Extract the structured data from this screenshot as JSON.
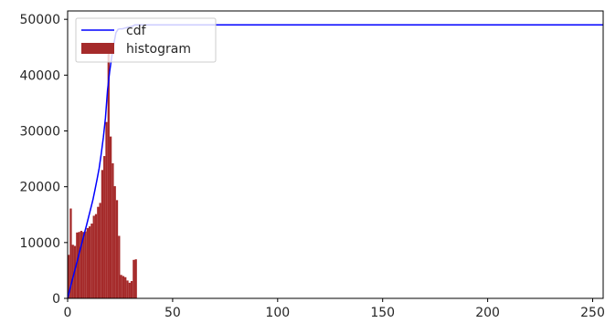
{
  "chart_data": {
    "type": "bar",
    "title": "",
    "xlabel": "",
    "ylabel": "",
    "xlim": [
      0,
      255
    ],
    "ylim": [
      0,
      51500
    ],
    "x_ticks": [
      0,
      50,
      100,
      150,
      200,
      250
    ],
    "y_ticks": [
      0,
      10000,
      20000,
      30000,
      40000,
      50000
    ],
    "grid": false,
    "legend": {
      "placement": "upper-left",
      "entries": [
        {
          "label": "cdf",
          "kind": "line",
          "color": "#0000ff"
        },
        {
          "label": "histogram",
          "kind": "bar",
          "color": "#a52a2a"
        }
      ]
    },
    "series": [
      {
        "name": "histogram",
        "kind": "bar",
        "color": "#a52a2a",
        "bin_width": 1,
        "x": [
          0,
          1,
          2,
          3,
          4,
          5,
          6,
          7,
          8,
          9,
          10,
          11,
          12,
          13,
          14,
          15,
          16,
          17,
          18,
          19,
          20,
          21,
          22,
          23,
          24,
          25,
          26,
          27,
          28,
          29,
          30,
          31,
          32,
          33
        ],
        "values": [
          7800,
          16100,
          9600,
          9400,
          11800,
          11900,
          12100,
          11900,
          12000,
          12600,
          12900,
          13400,
          14800,
          15100,
          16400,
          17100,
          23000,
          25500,
          31600,
          44200,
          29000,
          24200,
          20100,
          17600,
          11200,
          4200,
          4000,
          3800,
          3200,
          2800,
          3100,
          6900,
          7000,
          0
        ]
      },
      {
        "name": "cdf",
        "kind": "line",
        "color": "#0000ff",
        "x": [
          0,
          1,
          2,
          3,
          4,
          5,
          6,
          7,
          8,
          9,
          10,
          11,
          12,
          13,
          14,
          15,
          16,
          17,
          18,
          19,
          20,
          21,
          22,
          23,
          24,
          25,
          26,
          27,
          28,
          29,
          30,
          31,
          32,
          33,
          255
        ],
        "values": [
          0,
          1500,
          3000,
          4400,
          5900,
          7300,
          8800,
          10200,
          11700,
          13100,
          14600,
          16100,
          17600,
          19400,
          21300,
          23300,
          25900,
          28800,
          32300,
          37300,
          40600,
          43300,
          45600,
          47600,
          48200,
          48300,
          48300,
          48400,
          48500,
          48600,
          48700,
          48800,
          49000,
          49000,
          49000
        ]
      }
    ]
  }
}
